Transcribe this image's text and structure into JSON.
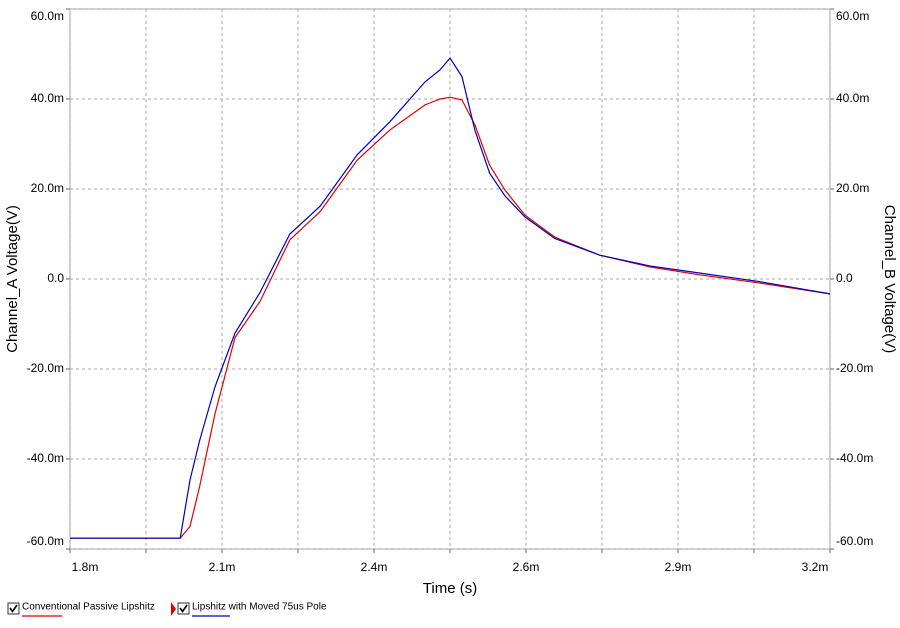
{
  "chart_data": {
    "type": "line",
    "x_label": "Time (s)",
    "y_label": "Channel_A Voltage(V)",
    "y2_label": "Channel_B Voltage(V)",
    "x": [
      0.0018,
      0.002003,
      0.002021,
      0.002039,
      0.002067,
      0.002104,
      0.00215,
      0.002205,
      0.002261,
      0.002329,
      0.002389,
      0.002454,
      0.002482,
      0.0025,
      0.002522,
      0.002546,
      0.002573,
      0.002601,
      0.002638,
      0.002693,
      0.002776,
      0.002868,
      0.002961,
      0.003071,
      0.0032
    ],
    "series": [
      {
        "name": "Conventional Passive Lipshitz",
        "color": "#e00000",
        "values": [
          -0.0576,
          -0.0576,
          -0.055,
          -0.046,
          -0.03,
          -0.013,
          -0.005,
          0.0087,
          0.015,
          0.0264,
          0.0331,
          0.0387,
          0.04,
          0.0404,
          0.0398,
          0.0342,
          0.0253,
          0.0198,
          0.0142,
          0.0093,
          0.0053,
          0.0027,
          0.0009,
          -0.0009,
          -0.0033
        ]
      },
      {
        "name": "Lipshitz with Moved 75us Pole",
        "color": "#0000c0",
        "axis": "y2",
        "values": [
          -0.0576,
          -0.0576,
          -0.0447,
          -0.0358,
          -0.024,
          -0.012,
          -0.003,
          0.01,
          0.0162,
          0.0276,
          0.0349,
          0.0438,
          0.0465,
          0.0491,
          0.045,
          0.033,
          0.0235,
          0.0185,
          0.0138,
          0.009,
          0.0053,
          0.0029,
          0.0013,
          -0.0006,
          -0.0033
        ]
      }
    ],
    "xlim": [
      0.0018,
      0.0032
    ],
    "xticks": [
      {
        "value": 0.0018,
        "label": "1.8m"
      },
      {
        "value": 0.00208,
        "label": "2.1m"
      },
      {
        "value": 0.00236,
        "label": "2.4m"
      },
      {
        "value": 0.00264,
        "label": "2.6m"
      },
      {
        "value": 0.00292,
        "label": "2.9m"
      },
      {
        "value": 0.0032,
        "label": "3.2m"
      }
    ],
    "xgrid": [
      0.00194,
      0.00222,
      0.0025,
      0.00278,
      0.00306
    ],
    "ylim": [
      -0.06,
      0.06
    ],
    "yticks": [
      {
        "value": -0.06,
        "label": "-60.0m"
      },
      {
        "value": -0.04,
        "label": "-40.0m"
      },
      {
        "value": -0.02,
        "label": "-20.0m"
      },
      {
        "value": 0,
        "label": "0.0"
      },
      {
        "value": 0.02,
        "label": "20.0m"
      },
      {
        "value": 0.04,
        "label": "40.0m"
      },
      {
        "value": 0.06,
        "label": "60.0m"
      }
    ],
    "y2lim": [
      -0.06,
      0.06
    ],
    "y2ticks": [
      {
        "value": -0.06,
        "label": "-60.0m"
      },
      {
        "value": -0.04,
        "label": "-40.0m"
      },
      {
        "value": -0.02,
        "label": "-20.0m"
      },
      {
        "value": 0,
        "label": "0.0"
      },
      {
        "value": 0.02,
        "label": "20.0m"
      },
      {
        "value": 0.04,
        "label": "40.0m"
      },
      {
        "value": 0.06,
        "label": "60.0m"
      }
    ],
    "grid": true
  }
}
